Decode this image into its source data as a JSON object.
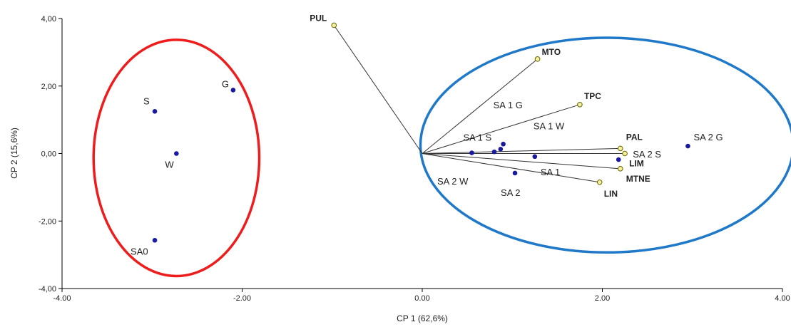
{
  "chart_data": {
    "type": "scatter",
    "title": "",
    "xlabel": "CP 1 (62,6%)",
    "ylabel": "CP 2 (15,6%)",
    "xlim": [
      -4,
      4
    ],
    "ylim": [
      -4,
      4
    ],
    "grid": false,
    "x_ticks": [
      "-4.00",
      "-2.00",
      "0.00",
      "2.00",
      "4.00"
    ],
    "y_ticks": [
      "4,00",
      "2,00",
      "0,00",
      "-2,00",
      "-4,00"
    ],
    "colors": {
      "observation": "#1a1aa0",
      "variable": "#f4f0a0",
      "variable_stroke": "#666600",
      "line": "#333333",
      "ellipse_left": "#ee1c1c",
      "ellipse_right": "#1f78c8"
    },
    "observations": [
      {
        "label": "G",
        "x": -2.1,
        "y": 1.88
      },
      {
        "label": "S",
        "x": -2.97,
        "y": 1.25
      },
      {
        "label": "W",
        "x": -2.73,
        "y": 0.0
      },
      {
        "label": "SA0",
        "x": -2.97,
        "y": -2.57
      },
      {
        "label": "SA 1 G",
        "x": 0.9,
        "y": 0.28
      },
      {
        "label": "SA 1 S",
        "x": 0.55,
        "y": 0.02
      },
      {
        "label": "SA 1 W",
        "x": 0.87,
        "y": 0.13
      },
      {
        "label": "SA 1",
        "x": 1.25,
        "y": -0.09
      },
      {
        "label": "SA 2",
        "x": 1.03,
        "y": -0.58
      },
      {
        "label": "SA 2 W",
        "x": 0.8,
        "y": 0.05
      },
      {
        "label": "SA 2 S",
        "x": 2.18,
        "y": -0.18
      },
      {
        "label": "SA 2 G",
        "x": 2.95,
        "y": 0.22
      }
    ],
    "variables": [
      {
        "label": "PUL",
        "x": -0.98,
        "y": 3.8
      },
      {
        "label": "MTO",
        "x": 1.28,
        "y": 2.8
      },
      {
        "label": "TPC",
        "x": 1.75,
        "y": 1.45
      },
      {
        "label": "PAL",
        "x": 2.2,
        "y": 0.15
      },
      {
        "label": "LIM",
        "x": 2.25,
        "y": 0.0
      },
      {
        "label": "MTNE",
        "x": 2.2,
        "y": -0.45
      },
      {
        "label": "LIN",
        "x": 1.97,
        "y": -0.85
      }
    ],
    "groups": [
      {
        "name": "left-group",
        "cx": -2.73,
        "cy": -0.13,
        "rx": 0.92,
        "ry": 3.5,
        "angle": 0
      },
      {
        "name": "right-group",
        "cx": 2.05,
        "cy": 0.25,
        "rx": 2.07,
        "ry": 3.18,
        "angle": 0
      }
    ]
  }
}
